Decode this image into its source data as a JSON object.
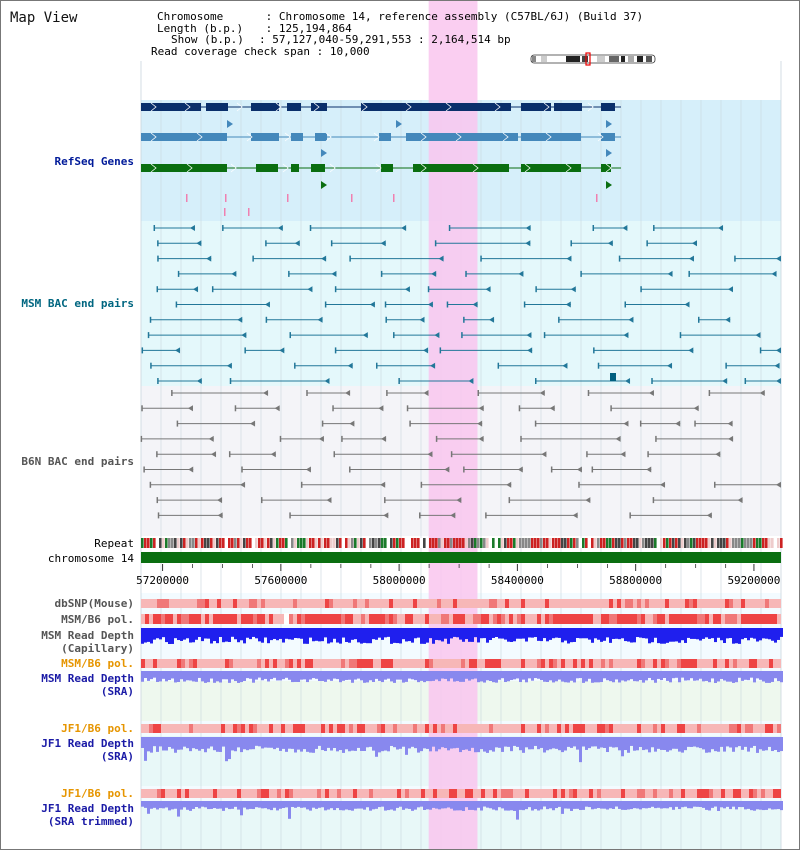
{
  "view_title": "Map View",
  "info": {
    "chromosome_key": "Chromosome",
    "chromosome_val": "Chromosome 14, reference assembly (C57BL/6J) (Build 37)",
    "length_key": "Length (b.p.)",
    "length_val": "125,194,864",
    "show_key": "Show (b.p.)",
    "show_val": "57,127,040-59,291,553 : 2,164,514 bp",
    "coverage_key": "Read coverage check span",
    "coverage_val": "10,000"
  },
  "tracks": {
    "refseq": "RefSeq Genes",
    "msm_bac": "MSM BAC end pairs",
    "b6n_bac": "B6N BAC end pairs",
    "repeat": "Repeat",
    "chromosome": "chromosome 14",
    "dbsnp": "dbSNP(Mouse)",
    "msm_b6_pol": "MSM/B6 pol.",
    "msm_read_depth_cap_1": "MSM Read Depth",
    "msm_read_depth_cap_2": "(Capillary)",
    "msm_b6_pol_sra": "MSM/B6 pol.",
    "msm_read_depth_sra_1": "MSM Read Depth",
    "msm_read_depth_sra_2": "(SRA)",
    "jf1_b6_pol": "JF1/B6 pol.",
    "jf1_read_depth_1": "JF1 Read Depth",
    "jf1_read_depth_2": "(SRA)",
    "jf1_b6_pol_2": "JF1/B6 pol.",
    "jf1_read_depth_trim_1": "JF1 Read Depth",
    "jf1_read_depth_trim_2": "(SRA trimmed)"
  },
  "axis": {
    "ticks": [
      "57200000",
      "57600000",
      "58000000",
      "58400000",
      "58800000",
      "59200000"
    ],
    "tick_values": [
      57200000,
      57600000,
      58000000,
      58400000,
      58800000,
      59200000
    ],
    "range": [
      57127040,
      59291553
    ]
  },
  "highlight_range": [
    58100000,
    58265000
  ],
  "colors": {
    "highlight": "#f9c6ee",
    "refseq_bg": "#d6effa",
    "msm_bg": "#e4f8fb",
    "b6n_bg": "#f4f4f8",
    "navy_gene": "#0a2f6b",
    "steel_gene": "#4488bb",
    "green_gene": "#0a6e10",
    "chromosome_bar": "#0a6e10",
    "teal_pair": "#227799",
    "gray_pair": "#777777",
    "depth_blue": "#1f1fee",
    "depth_lavender": "#8888ee",
    "pol_red": "#ee4444",
    "pol_pink": "#f7b7b7"
  }
}
